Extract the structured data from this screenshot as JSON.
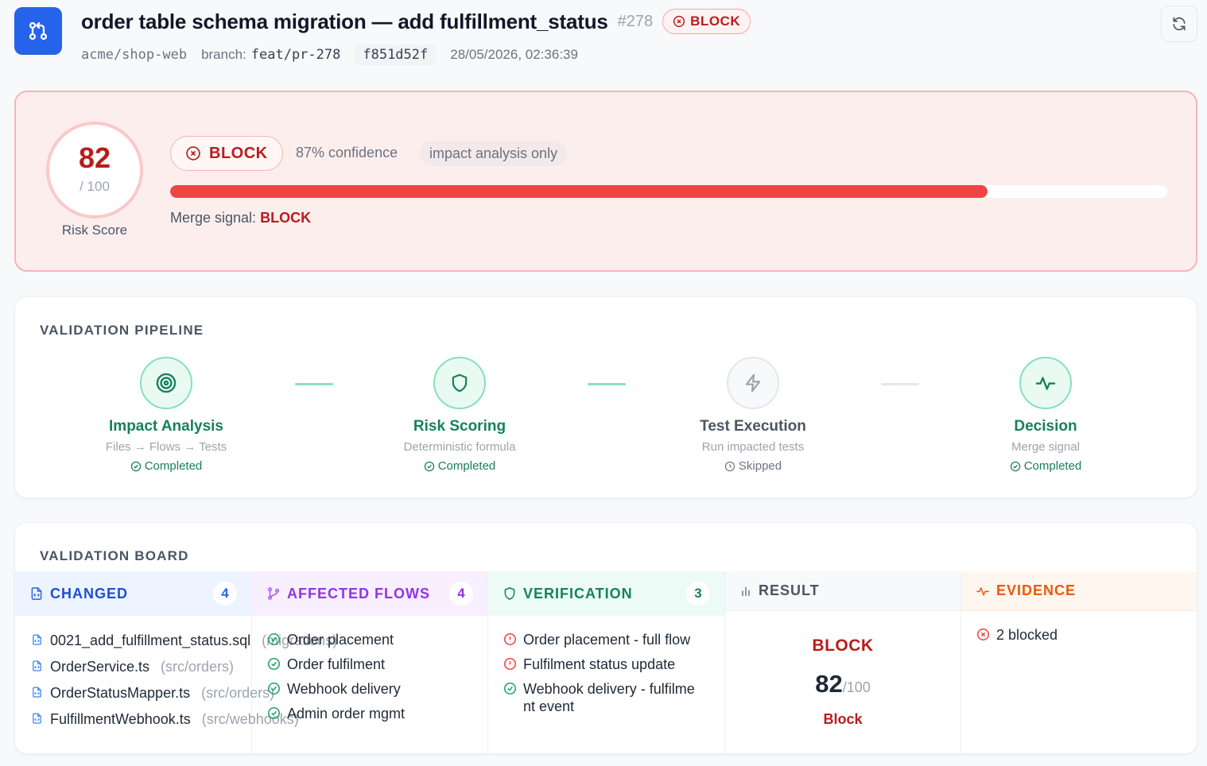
{
  "header": {
    "title": "order table schema migration — add fulfillment_status",
    "pr_number": "#278",
    "badge": "BLOCK",
    "repo": "acme/shop-web",
    "branch_label": "branch:",
    "branch": "feat/pr-278",
    "sha": "f851d52f",
    "timestamp": "28/05/2026, 02:36:39"
  },
  "risk": {
    "score": "82",
    "max": "/ 100",
    "label": "Risk Score",
    "badge": "BLOCK",
    "confidence": "87% confidence",
    "mode": "impact analysis only",
    "progress_percent": 82,
    "merge_label": "Merge signal:",
    "merge_value": "BLOCK"
  },
  "pipeline": {
    "title": "VALIDATION PIPELINE",
    "stages": [
      {
        "name": "Impact Analysis",
        "sub": "Files → Flows → Tests",
        "status": "Completed",
        "icon": "target-icon"
      },
      {
        "name": "Risk Scoring",
        "sub": "Deterministic formula",
        "status": "Completed",
        "icon": "shield-icon"
      },
      {
        "name": "Test Execution",
        "sub": "Run impacted tests",
        "status": "Skipped",
        "icon": "lightning-icon"
      },
      {
        "name": "Decision",
        "sub": "Merge signal",
        "status": "Completed",
        "icon": "activity-icon"
      }
    ]
  },
  "board": {
    "title": "VALIDATION BOARD",
    "changed": {
      "label": "CHANGED",
      "count": "4",
      "items": [
        {
          "name": "0021_add_fulfillment_status.sql",
          "path": "(migrations)"
        },
        {
          "name": "OrderService.ts",
          "path": "(src/orders)"
        },
        {
          "name": "OrderStatusMapper.ts",
          "path": "(src/orders)"
        },
        {
          "name": "FulfillmentWebhook.ts",
          "path": "(src/webhooks)"
        }
      ]
    },
    "flows": {
      "label": "AFFECTED FLOWS",
      "count": "4",
      "items": [
        "Order placement",
        "Order fulfilment",
        "Webhook delivery",
        "Admin order mgmt"
      ]
    },
    "verification": {
      "label": "VERIFICATION",
      "count": "3",
      "items": [
        {
          "text": "Order placement - full flow",
          "status": "warning"
        },
        {
          "text": "Fulfilment status update",
          "status": "warning"
        },
        {
          "text": "Webhook delivery - fulfilme",
          "text2": "nt event",
          "status": "ok"
        }
      ]
    },
    "result": {
      "label": "RESULT",
      "signal": "BLOCK",
      "score": "82",
      "max": "/100",
      "sub": "Block"
    },
    "evidence": {
      "label": "EVIDENCE",
      "items": [
        "2 blocked"
      ]
    }
  },
  "colors": {
    "accent": "#2563eb",
    "danger": "#b91c1c",
    "success": "#17805d",
    "purple": "#9333ea",
    "orange": "#ea580c"
  }
}
